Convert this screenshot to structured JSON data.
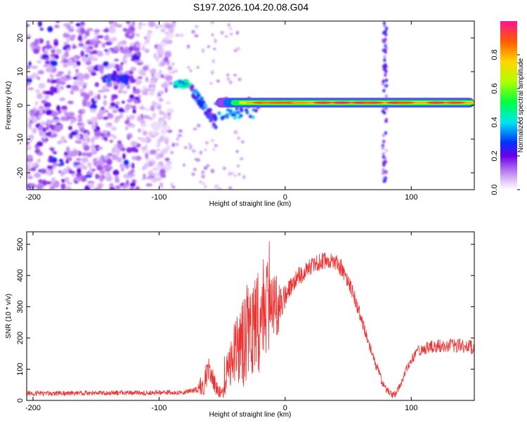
{
  "title": "S197.2026.104.20.08.G04",
  "chart_data": [
    {
      "type": "heatmap",
      "xlabel": "Height of straight line (km)",
      "ylabel": "Frequency (Hz)",
      "xlim": [
        -205,
        150
      ],
      "ylim": [
        -25,
        25
      ],
      "xticks": [
        -200,
        -100,
        0,
        100
      ],
      "xtick_labels": [
        "-200",
        "-100",
        "0",
        "100"
      ],
      "yticks": [
        20,
        10,
        0,
        -10,
        -20
      ],
      "ytick_labels": [
        "20",
        "10",
        "0",
        "-10",
        "-20"
      ],
      "colorbar": {
        "label": "Normalized spectral amplitude",
        "range": [
          0,
          1
        ],
        "ticks": [
          0.0,
          0.2,
          0.4,
          0.6,
          0.8
        ],
        "tick_labels": [
          "0.0",
          "0.2",
          "0.4",
          "0.6",
          "0.8"
        ]
      },
      "features": [
        {
          "kind": "noise",
          "x_range": [
            -205,
            -90
          ],
          "freq_range": [
            -25,
            25
          ],
          "amplitude": 0.18
        },
        {
          "kind": "patch",
          "x_range": [
            -145,
            -125
          ],
          "freq_center": 8,
          "amplitude": 0.3
        },
        {
          "kind": "band",
          "x_range": [
            -88,
            -75
          ],
          "freq_center": 6.5,
          "amplitude": 0.45
        },
        {
          "kind": "descending",
          "x_range": [
            -75,
            -55
          ],
          "freq_from": 5,
          "freq_to": -5,
          "amplitude": 0.35
        },
        {
          "kind": "band",
          "x_range": [
            -55,
            150
          ],
          "freq_center": 0.8,
          "amplitude": 0.85
        },
        {
          "kind": "spike",
          "x": 79,
          "freq_range": [
            -25,
            25
          ],
          "amplitude": 0.15
        }
      ]
    },
    {
      "type": "line",
      "xlabel": "Height of straight line (km)",
      "ylabel": "SNR (10 * v/v)",
      "xlim": [
        -205,
        150
      ],
      "ylim": [
        0,
        540
      ],
      "xticks": [
        -200,
        -100,
        0,
        100
      ],
      "xtick_labels": [
        "-200",
        "-100",
        "0",
        "100"
      ],
      "yticks": [
        0,
        100,
        200,
        300,
        400,
        500
      ],
      "ytick_labels": [
        "0",
        "100",
        "200",
        "300",
        "400",
        "500"
      ],
      "color": "#ee3333",
      "series": [
        {
          "name": "SNR",
          "x": [
            -205,
            -180,
            -150,
            -120,
            -100,
            -80,
            -70,
            -65,
            -60,
            -55,
            -52,
            -48,
            -45,
            -40,
            -35,
            -30,
            -25,
            -20,
            -15,
            -10,
            -5,
            0,
            5,
            10,
            15,
            20,
            25,
            30,
            35,
            40,
            45,
            50,
            55,
            60,
            65,
            70,
            75,
            80,
            85,
            88,
            92,
            96,
            100,
            105,
            110,
            115,
            120,
            125,
            130,
            135,
            140,
            145,
            150
          ],
          "values": [
            22,
            22,
            24,
            24,
            25,
            26,
            35,
            55,
            110,
            40,
            30,
            25,
            120,
            150,
            165,
            200,
            240,
            270,
            300,
            310,
            300,
            330,
            370,
            395,
            410,
            425,
            440,
            450,
            450,
            445,
            420,
            385,
            330,
            270,
            200,
            135,
            80,
            35,
            15,
            22,
            55,
            100,
            130,
            155,
            165,
            170,
            175,
            175,
            175,
            175,
            175,
            172,
            170
          ],
          "spread": [
            8,
            8,
            8,
            8,
            8,
            8,
            10,
            40,
            45,
            25,
            20,
            20,
            70,
            110,
            140,
            160,
            170,
            180,
            160,
            130,
            80,
            40,
            30,
            30,
            30,
            30,
            30,
            30,
            30,
            30,
            30,
            28,
            25,
            22,
            20,
            18,
            16,
            14,
            10,
            10,
            12,
            14,
            16,
            18,
            20,
            22,
            22,
            22,
            22,
            22,
            22,
            22,
            22
          ]
        }
      ]
    }
  ]
}
